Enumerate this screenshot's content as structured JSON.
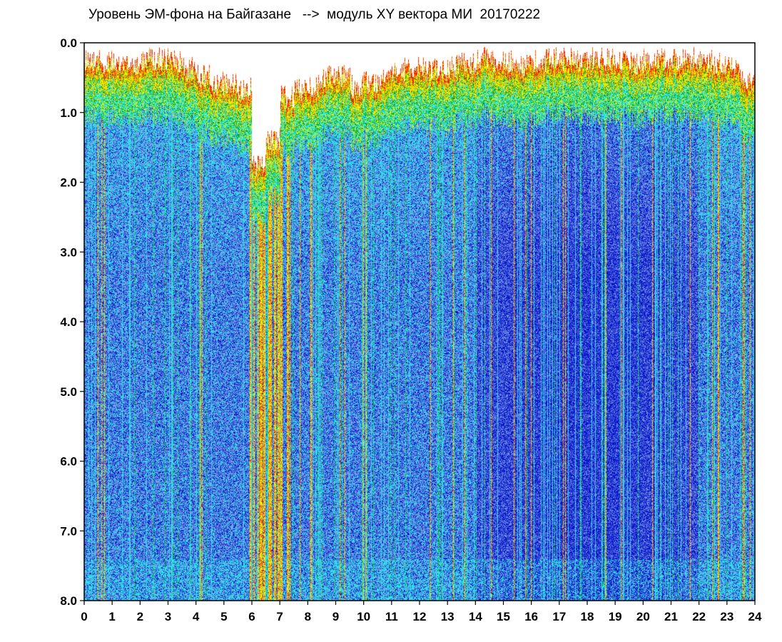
{
  "chart_data": {
    "type": "heatmap",
    "title": "Уровень ЭМ-фона на Байгазане   -->  модуль XY вектора МИ  20170222",
    "x_ticks": [
      "0",
      "1",
      "2",
      "3",
      "4",
      "5",
      "6",
      "7",
      "8",
      "9",
      "10",
      "11",
      "12",
      "13",
      "14",
      "15",
      "16",
      "17",
      "18",
      "19",
      "20",
      "21",
      "22",
      "23",
      "24"
    ],
    "y_ticks": [
      "0.0",
      "1.0",
      "2.0",
      "3.0",
      "4.0",
      "5.0",
      "6.0",
      "7.0",
      "8.0"
    ],
    "xlim": [
      0,
      24
    ],
    "ylim": [
      0,
      8
    ],
    "y_inverted": true,
    "colorscale": [
      "#0a14c8",
      "#3c5adc",
      "#7896e6",
      "#28e6e6",
      "#10a010",
      "#f0f000",
      "#ffa000",
      "#f01e00",
      "#ffffff"
    ],
    "upper_edge_depth": [
      0.05,
      0.1,
      0.15,
      0.1,
      0.05,
      0.05,
      0.1,
      0.2,
      0.3,
      0.4,
      0.4,
      0.5,
      1.6,
      1.2,
      0.6,
      0.5,
      0.45,
      0.3,
      0.3,
      0.45,
      0.4,
      0.35,
      0.2,
      0.2,
      0.2,
      0.2,
      0.15,
      0.1,
      0.05,
      0.1,
      0.1,
      0.15,
      0.1,
      0.05,
      0.05,
      0.1,
      0.05,
      0.05,
      0.1,
      0.1,
      0.05,
      0.05,
      0.05,
      0.05,
      0.1,
      0.1,
      0.15,
      0.4
    ]
  }
}
